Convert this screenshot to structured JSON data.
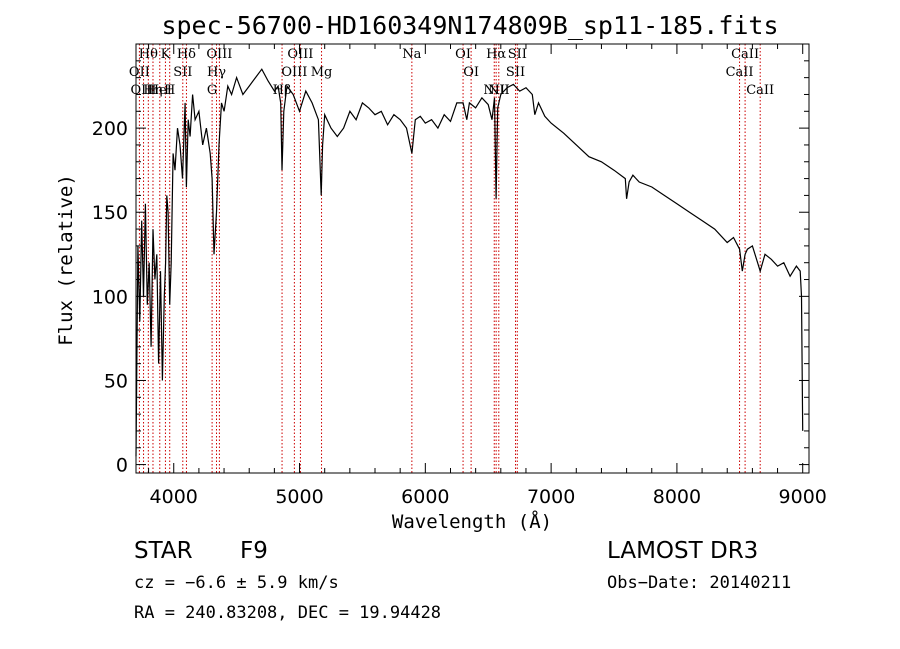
{
  "chart_data": {
    "type": "line",
    "title": "spec-56700-HD160349N174809B_sp11-185.fits",
    "xlabel": "Wavelength (Å)",
    "ylabel": "Flux (relative)",
    "xlim": [
      3700,
      9050
    ],
    "ylim": [
      -5,
      250
    ],
    "x_ticks": [
      4000,
      5000,
      6000,
      7000,
      8000,
      9000
    ],
    "y_ticks": [
      0,
      50,
      100,
      150,
      200
    ],
    "grid": false,
    "series": [
      {
        "x": [
          3700,
          3715,
          3730,
          3745,
          3760,
          3775,
          3790,
          3805,
          3820,
          3835,
          3850,
          3865,
          3880,
          3895,
          3910,
          3925,
          3935,
          3945,
          3955,
          3968,
          3980,
          3995,
          4010,
          4030,
          4050,
          4070,
          4090,
          4101,
          4115,
          4130,
          4150,
          4170,
          4200,
          4230,
          4260,
          4290,
          4305,
          4320,
          4340,
          4360,
          4380,
          4400,
          4430,
          4460,
          4500,
          4550,
          4600,
          4650,
          4700,
          4750,
          4800,
          4830,
          4850,
          4861,
          4875,
          4900,
          4950,
          5000,
          5050,
          5100,
          5150,
          5172,
          5183,
          5200,
          5250,
          5300,
          5350,
          5400,
          5450,
          5500,
          5550,
          5600,
          5650,
          5700,
          5750,
          5800,
          5850,
          5893,
          5920,
          5960,
          6000,
          6050,
          6100,
          6150,
          6200,
          6250,
          6300,
          6330,
          6350,
          6400,
          6450,
          6500,
          6530,
          6550,
          6563,
          6575,
          6600,
          6650,
          6700,
          6750,
          6800,
          6850,
          6870,
          6900,
          6950,
          7000,
          7100,
          7200,
          7300,
          7400,
          7500,
          7590,
          7600,
          7620,
          7650,
          7700,
          7800,
          7900,
          8000,
          8100,
          8200,
          8300,
          8400,
          8450,
          8498,
          8520,
          8542,
          8560,
          8600,
          8662,
          8700,
          8750,
          8800,
          8850,
          8900,
          8950,
          8980,
          8990,
          9000
        ],
        "y": [
          5,
          130,
          85,
          145,
          100,
          155,
          95,
          120,
          70,
          140,
          110,
          125,
          60,
          115,
          50,
          100,
          120,
          160,
          150,
          95,
          120,
          185,
          175,
          200,
          190,
          170,
          215,
          165,
          205,
          195,
          220,
          205,
          210,
          190,
          200,
          185,
          170,
          125,
          150,
          190,
          215,
          210,
          225,
          220,
          230,
          220,
          225,
          230,
          235,
          228,
          222,
          225,
          215,
          175,
          210,
          225,
          220,
          210,
          222,
          215,
          205,
          160,
          190,
          208,
          200,
          195,
          200,
          210,
          205,
          215,
          212,
          208,
          210,
          202,
          208,
          205,
          200,
          185,
          205,
          207,
          203,
          205,
          200,
          208,
          204,
          215,
          215,
          205,
          215,
          212,
          218,
          214,
          205,
          218,
          158,
          212,
          220,
          224,
          226,
          222,
          224,
          220,
          208,
          215,
          207,
          203,
          197,
          190,
          183,
          180,
          175,
          170,
          158,
          168,
          172,
          168,
          165,
          160,
          155,
          150,
          145,
          140,
          132,
          135,
          128,
          115,
          125,
          128,
          130,
          115,
          125,
          122,
          118,
          120,
          112,
          118,
          115,
          100,
          20
        ]
      }
    ],
    "spectral_lines": [
      {
        "label": "Hθ",
        "wavelength": 3798
      },
      {
        "label": "OII",
        "wavelength": 3727
      },
      {
        "label": "OIII",
        "wavelength": 3760
      },
      {
        "label": "K",
        "wavelength": 3934
      },
      {
        "label": "HeI",
        "wavelength": 3889
      },
      {
        "label": "Hη",
        "wavelength": 3835
      },
      {
        "label": "Hδ",
        "wavelength": 4101
      },
      {
        "label": "SII",
        "wavelength": 4072
      },
      {
        "label": "H",
        "wavelength": 3968
      },
      {
        "label": "OIII",
        "wavelength": 4363
      },
      {
        "label": "Hγ",
        "wavelength": 4340
      },
      {
        "label": "G",
        "wavelength": 4305
      },
      {
        "label": "OIII",
        "wavelength": 5007
      },
      {
        "label": "OIII",
        "wavelength": 4959
      },
      {
        "label": "Hβ",
        "wavelength": 4861
      },
      {
        "label": "Mg",
        "wavelength": 5175
      },
      {
        "label": "Na",
        "wavelength": 5893
      },
      {
        "label": "OI",
        "wavelength": 6300
      },
      {
        "label": "OI",
        "wavelength": 6364
      },
      {
        "label": "Hα",
        "wavelength": 6563
      },
      {
        "label": "SII",
        "wavelength": 6717
      },
      {
        "label": "NII",
        "wavelength": 6548
      },
      {
        "label": "NII",
        "wavelength": 6584
      },
      {
        "label": "SII",
        "wavelength": 6731
      },
      {
        "label": "CaII",
        "wavelength": 8542
      },
      {
        "label": "CaII",
        "wavelength": 8498
      },
      {
        "label": "CaII",
        "wavelength": 8662
      }
    ],
    "line_color": "#000000",
    "marker_color": "#cc0000"
  },
  "footer": {
    "object_type": "STAR",
    "subclass": "F9",
    "survey": "LAMOST DR3",
    "velocity": "cz = −6.6 ± 5.9 km/s",
    "obs_date": "Obs−Date: 20140211",
    "coords": "RA = 240.83208, DEC =  19.94428"
  }
}
